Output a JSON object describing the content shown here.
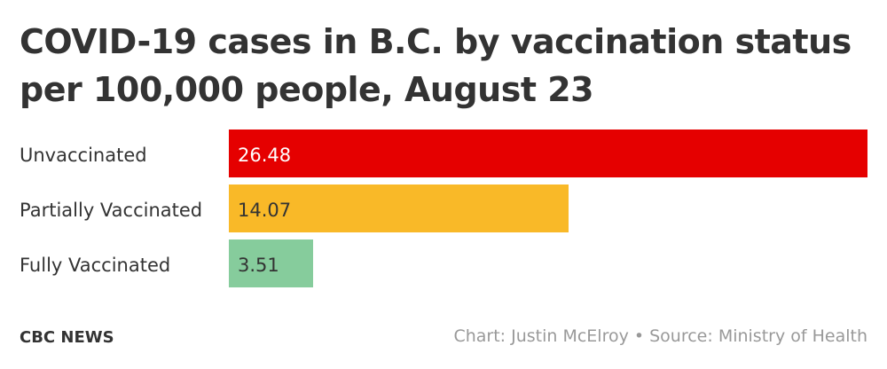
{
  "chart_data": {
    "type": "bar",
    "orientation": "horizontal",
    "title": "COVID-19 cases in B.C. by vaccination status per 100,000 people, August 23",
    "categories": [
      "Unvaccinated",
      "Partially Vaccinated",
      "Fully Vaccinated"
    ],
    "values": [
      26.48,
      14.07,
      3.51
    ],
    "value_labels": [
      "26.48",
      "14.07",
      "3.51"
    ],
    "colors": [
      "#e50000",
      "#f9b928",
      "#86cc9c"
    ],
    "label_colors": [
      "#ffffff",
      "#333333",
      "#333333"
    ],
    "xlim": [
      0,
      26.48
    ],
    "grid": false,
    "legend": "none"
  },
  "footer": {
    "brand": "CBC NEWS",
    "credit": "Chart: Justin McElroy • Source: Ministry of Health"
  }
}
